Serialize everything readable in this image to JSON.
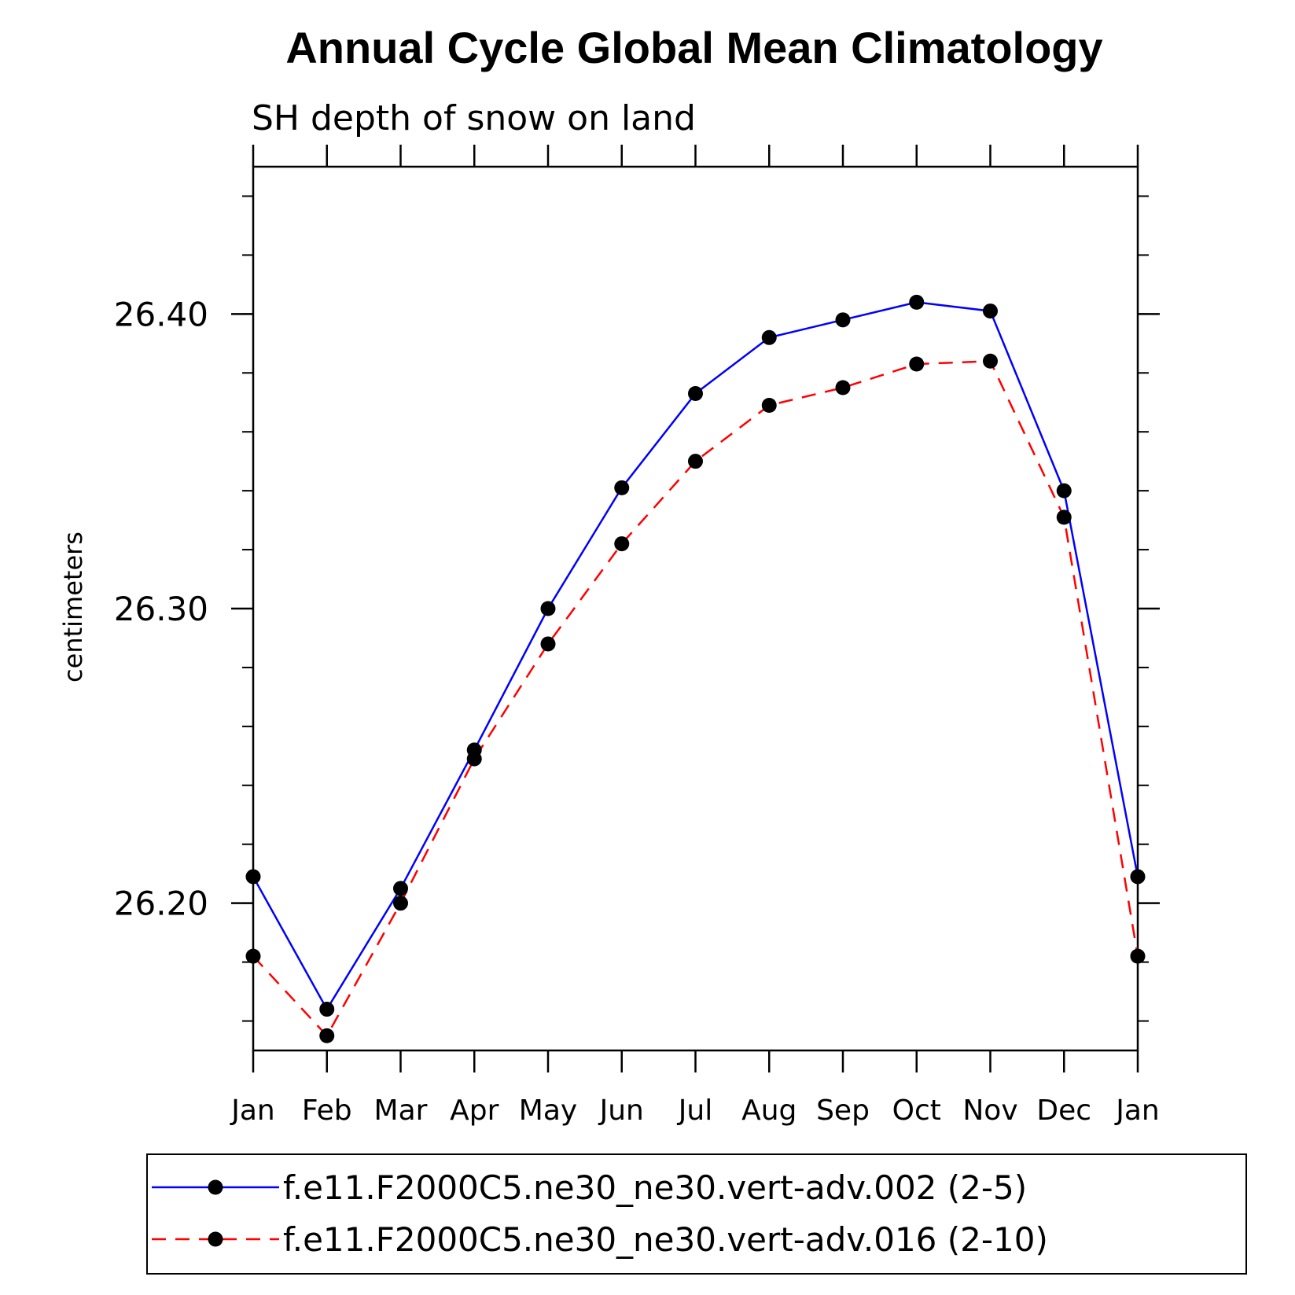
{
  "chart_data": {
    "type": "line",
    "title": "Annual Cycle Global Mean Climatology",
    "subtitle": "SH depth of snow on land",
    "ylabel": "centimeters",
    "xlabel": "",
    "categories": [
      "Jan",
      "Feb",
      "Mar",
      "Apr",
      "May",
      "Jun",
      "Jul",
      "Aug",
      "Sep",
      "Oct",
      "Nov",
      "Dec",
      "Jan"
    ],
    "ylim": [
      26.15,
      26.45
    ],
    "yticks": [
      26.2,
      26.3,
      26.4
    ],
    "ytick_labels": [
      "26.20",
      "26.30",
      "26.40"
    ],
    "yminor_step": 0.02,
    "grid": false,
    "legend_position": "bottom",
    "series": [
      {
        "name": "f.e11.F2000C5.ne30_ne30.vert-adv.002 (2-5)",
        "color": "#0000ff",
        "dash": "solid",
        "marker": "filled-circle",
        "values": [
          26.209,
          26.164,
          26.205,
          26.252,
          26.3,
          26.341,
          26.373,
          26.392,
          26.398,
          26.404,
          26.401,
          26.34,
          26.209
        ]
      },
      {
        "name": "f.e11.F2000C5.ne30_ne30.vert-adv.016 (2-10)",
        "color": "#ff0000",
        "dash": "dashed",
        "marker": "filled-circle",
        "values": [
          26.182,
          26.155,
          26.2,
          26.249,
          26.288,
          26.322,
          26.35,
          26.369,
          26.375,
          26.383,
          26.384,
          26.331,
          26.182
        ]
      }
    ]
  }
}
